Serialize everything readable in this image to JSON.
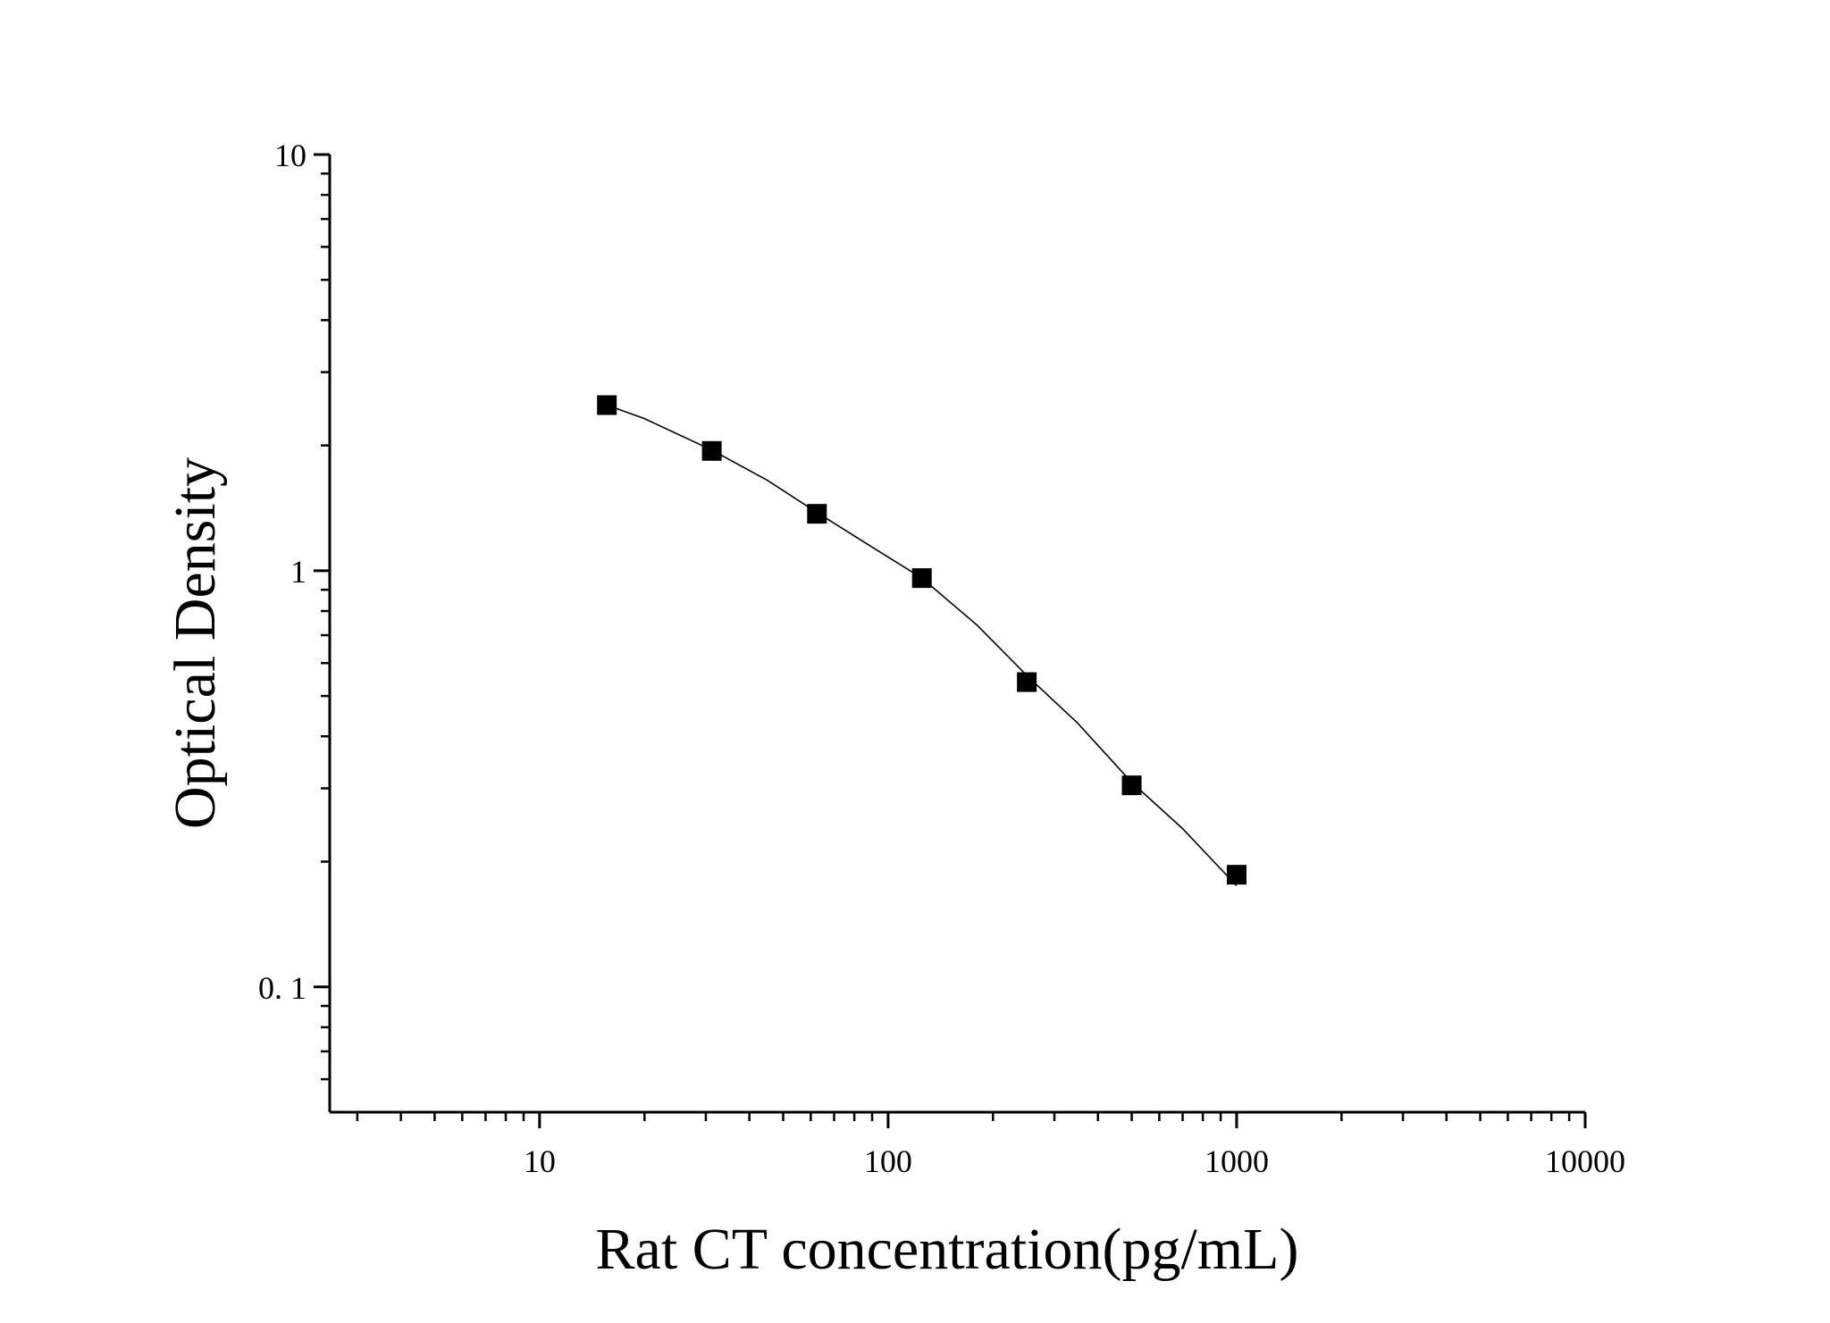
{
  "chart_data": {
    "type": "scatter",
    "title": "",
    "xlabel": "Rat CT concentration(pg/mL)",
    "ylabel": "Optical Density",
    "x_scale": "log",
    "y_scale": "log",
    "xlim": [
      2.5,
      10000
    ],
    "ylim": [
      0.05,
      10
    ],
    "x_ticks": [
      10,
      100,
      1000,
      10000
    ],
    "x_tick_labels": [
      "10",
      "100",
      "1000",
      "10000"
    ],
    "y_ticks": [
      0.1,
      1,
      10
    ],
    "y_tick_labels": [
      "0. 1",
      "1",
      "10"
    ],
    "grid": false,
    "legend": "none",
    "series": [
      {
        "marker": "square",
        "color": "#000000",
        "x": [
          15.6,
          31.2,
          62.5,
          125,
          250,
          500,
          1000
        ],
        "y": [
          2.5,
          1.94,
          1.37,
          0.96,
          0.54,
          0.305,
          0.186
        ]
      }
    ],
    "fit_curve": {
      "style": "line",
      "color": "#000000",
      "x": [
        15.6,
        20,
        31.2,
        45,
        62.5,
        90,
        125,
        180,
        250,
        350,
        500,
        700,
        1000
      ],
      "y": [
        2.5,
        2.32,
        1.95,
        1.65,
        1.38,
        1.14,
        0.96,
        0.74,
        0.56,
        0.43,
        0.31,
        0.24,
        0.175
      ]
    }
  }
}
